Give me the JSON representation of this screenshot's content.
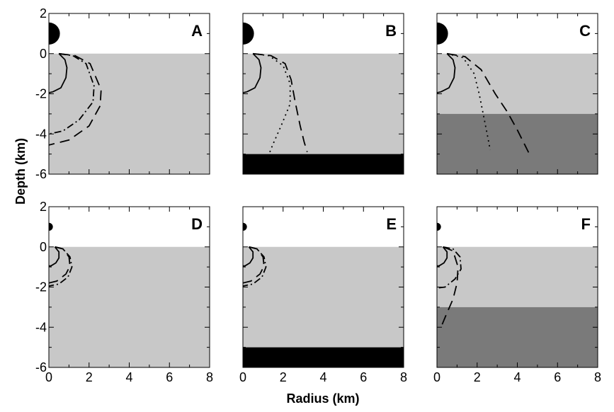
{
  "chart_data": {
    "type": "line",
    "xlabel": "Radius (km)",
    "ylabel": "Depth (km)",
    "xlim": [
      0,
      8
    ],
    "ylim": [
      -6,
      2
    ],
    "xticks": [
      "0",
      "2",
      "4",
      "6",
      "8"
    ],
    "yticks": [
      "-6",
      "-4",
      "-2",
      "0",
      "2"
    ],
    "layer_colors": {
      "ground": "#c8c8c8",
      "deep": "#7a7a7a",
      "basement": "#000000",
      "dome": "#000000"
    },
    "panels": [
      {
        "label": "A",
        "dome_radius": 0.55,
        "layers": [
          {
            "kind": "ground",
            "top": 0,
            "bottom": -6
          }
        ],
        "curves": [
          {
            "style": "solid",
            "points": [
              [
                0.5,
                0
              ],
              [
                0.8,
                -0.3
              ],
              [
                0.9,
                -0.7
              ],
              [
                0.85,
                -1.2
              ],
              [
                0.6,
                -1.7
              ],
              [
                0.2,
                -1.9
              ],
              [
                0,
                -1.95
              ]
            ]
          },
          {
            "style": "dashdot",
            "points": [
              [
                0.5,
                0
              ],
              [
                1.2,
                -0.1
              ],
              [
                1.85,
                -0.5
              ],
              [
                2.25,
                -1.6
              ],
              [
                2.2,
                -2.4
              ],
              [
                1.5,
                -3.3
              ],
              [
                0.7,
                -3.85
              ],
              [
                0,
                -4.0
              ]
            ]
          },
          {
            "style": "dashed",
            "points": [
              [
                0.5,
                0
              ],
              [
                1.3,
                -0.1
              ],
              [
                2.05,
                -0.5
              ],
              [
                2.6,
                -1.8
              ],
              [
                2.55,
                -2.6
              ],
              [
                2.0,
                -3.6
              ],
              [
                1.0,
                -4.3
              ],
              [
                0,
                -4.55
              ]
            ]
          }
        ]
      },
      {
        "label": "B",
        "dome_radius": 0.55,
        "layers": [
          {
            "kind": "ground",
            "top": 0,
            "bottom": -5
          },
          {
            "kind": "basement",
            "top": -5,
            "bottom": -6
          }
        ],
        "curves": [
          {
            "style": "solid",
            "points": [
              [
                0.5,
                0
              ],
              [
                0.8,
                -0.3
              ],
              [
                0.9,
                -0.7
              ],
              [
                0.85,
                -1.2
              ],
              [
                0.6,
                -1.7
              ],
              [
                0.2,
                -1.9
              ],
              [
                0,
                -1.95
              ]
            ]
          },
          {
            "style": "dotted",
            "points": [
              [
                0.5,
                0
              ],
              [
                1.3,
                -0.1
              ],
              [
                2.0,
                -0.6
              ],
              [
                2.35,
                -1.5
              ],
              [
                2.35,
                -2.5
              ],
              [
                1.9,
                -3.6
              ],
              [
                1.5,
                -4.5
              ],
              [
                1.3,
                -5.0
              ]
            ]
          },
          {
            "style": "dashed",
            "points": [
              [
                0.5,
                0
              ],
              [
                1.4,
                -0.1
              ],
              [
                2.1,
                -0.5
              ],
              [
                2.4,
                -1.3
              ],
              [
                2.6,
                -2.4
              ],
              [
                2.85,
                -3.6
              ],
              [
                3.05,
                -4.4
              ],
              [
                3.2,
                -4.9
              ]
            ]
          }
        ]
      },
      {
        "label": "C",
        "dome_radius": 0.55,
        "layers": [
          {
            "kind": "ground",
            "top": 0,
            "bottom": -3
          },
          {
            "kind": "deep",
            "top": -3,
            "bottom": -6
          }
        ],
        "curves": [
          {
            "style": "solid",
            "points": [
              [
                0.5,
                0
              ],
              [
                0.8,
                -0.3
              ],
              [
                0.9,
                -0.7
              ],
              [
                0.85,
                -1.2
              ],
              [
                0.6,
                -1.7
              ],
              [
                0.2,
                -1.9
              ],
              [
                0,
                -1.95
              ]
            ]
          },
          {
            "style": "dotted",
            "points": [
              [
                0.5,
                0
              ],
              [
                1.3,
                -0.2
              ],
              [
                1.85,
                -1.0
              ],
              [
                2.1,
                -2.0
              ],
              [
                2.3,
                -3.0
              ],
              [
                2.5,
                -4.0
              ],
              [
                2.65,
                -4.8
              ]
            ]
          },
          {
            "style": "dashed",
            "points": [
              [
                0.5,
                0
              ],
              [
                1.4,
                -0.15
              ],
              [
                2.2,
                -0.8
              ],
              [
                2.9,
                -2.0
              ],
              [
                3.5,
                -2.9
              ],
              [
                4.0,
                -3.8
              ],
              [
                4.4,
                -4.6
              ],
              [
                4.6,
                -5.0
              ]
            ]
          }
        ]
      },
      {
        "label": "D",
        "dome_radius": 0.2,
        "layers": [
          {
            "kind": "ground",
            "top": 0,
            "bottom": -6
          }
        ],
        "curves": [
          {
            "style": "solid",
            "points": [
              [
                0.3,
                0
              ],
              [
                0.5,
                -0.25
              ],
              [
                0.5,
                -0.55
              ],
              [
                0.35,
                -0.8
              ],
              [
                0.1,
                -0.95
              ],
              [
                0,
                -0.95
              ]
            ]
          },
          {
            "style": "dashdot",
            "points": [
              [
                0.3,
                0
              ],
              [
                0.7,
                -0.1
              ],
              [
                1.05,
                -0.5
              ],
              [
                1.15,
                -1.0
              ],
              [
                0.95,
                -1.5
              ],
              [
                0.5,
                -1.85
              ],
              [
                0,
                -1.95
              ]
            ]
          },
          {
            "style": "dashed",
            "points": [
              [
                0.3,
                0
              ],
              [
                0.7,
                -0.1
              ],
              [
                1.0,
                -0.5
              ],
              [
                1.05,
                -0.95
              ],
              [
                0.85,
                -1.35
              ],
              [
                0.4,
                -1.7
              ],
              [
                0,
                -1.8
              ]
            ]
          }
        ]
      },
      {
        "label": "E",
        "dome_radius": 0.2,
        "layers": [
          {
            "kind": "ground",
            "top": 0,
            "bottom": -5
          },
          {
            "kind": "basement",
            "top": -5,
            "bottom": -6
          }
        ],
        "curves": [
          {
            "style": "solid",
            "points": [
              [
                0.3,
                0
              ],
              [
                0.5,
                -0.25
              ],
              [
                0.5,
                -0.55
              ],
              [
                0.35,
                -0.8
              ],
              [
                0.1,
                -0.95
              ],
              [
                0,
                -0.95
              ]
            ]
          },
          {
            "style": "dashdot",
            "points": [
              [
                0.3,
                0
              ],
              [
                0.7,
                -0.1
              ],
              [
                1.05,
                -0.5
              ],
              [
                1.15,
                -1.0
              ],
              [
                0.95,
                -1.5
              ],
              [
                0.5,
                -1.85
              ],
              [
                0,
                -1.95
              ]
            ]
          },
          {
            "style": "dashed",
            "points": [
              [
                0.3,
                0
              ],
              [
                0.7,
                -0.1
              ],
              [
                1.0,
                -0.5
              ],
              [
                1.05,
                -0.95
              ],
              [
                0.85,
                -1.35
              ],
              [
                0.4,
                -1.7
              ],
              [
                0,
                -1.8
              ]
            ]
          }
        ]
      },
      {
        "label": "F",
        "dome_radius": 0.2,
        "layers": [
          {
            "kind": "ground",
            "top": 0,
            "bottom": -3
          },
          {
            "kind": "deep",
            "top": -3,
            "bottom": -6
          }
        ],
        "curves": [
          {
            "style": "solid",
            "points": [
              [
                0.3,
                0
              ],
              [
                0.5,
                -0.25
              ],
              [
                0.5,
                -0.55
              ],
              [
                0.35,
                -0.8
              ],
              [
                0.1,
                -0.95
              ],
              [
                0,
                -0.95
              ]
            ]
          },
          {
            "style": "dashdot",
            "points": [
              [
                0.3,
                0
              ],
              [
                0.8,
                -0.1
              ],
              [
                1.15,
                -0.5
              ],
              [
                1.2,
                -1.1
              ],
              [
                0.9,
                -1.6
              ],
              [
                0.4,
                -2.0
              ],
              [
                0,
                -2.05
              ]
            ]
          },
          {
            "style": "dashed",
            "points": [
              [
                0.3,
                0
              ],
              [
                0.8,
                -0.2
              ],
              [
                1.05,
                -1.0
              ],
              [
                1.0,
                -1.8
              ],
              [
                0.8,
                -2.6
              ],
              [
                0.45,
                -3.4
              ],
              [
                0.2,
                -4.0
              ]
            ]
          }
        ]
      }
    ]
  }
}
